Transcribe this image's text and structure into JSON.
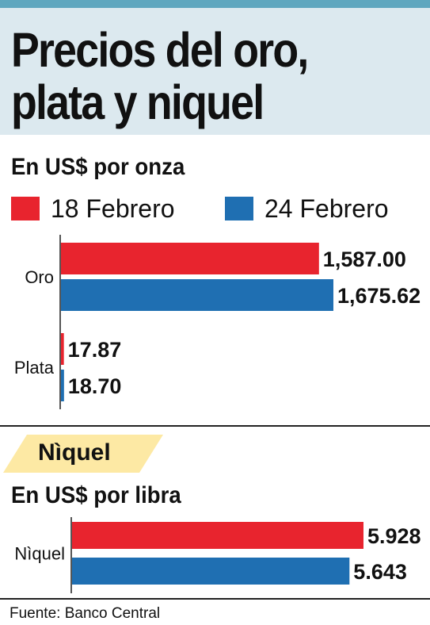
{
  "title_line1": "Precios del oro,",
  "title_line2": "plata y niquel",
  "unit_ounce": "En US$ por onza",
  "unit_pound": "En US$ por libra",
  "nickel_section_label": "Nìquel",
  "source": "Fuente: Banco Central",
  "colors": {
    "series1": "#e8242e",
    "series2": "#1f6fb2",
    "header_bg": "#dce9ef",
    "banner": "#fde9a4"
  },
  "chart_data": [
    {
      "type": "bar",
      "orientation": "horizontal",
      "title": "En US$ por onza",
      "categories": [
        "Oro",
        "Plata"
      ],
      "series": [
        {
          "name": "18 Febrero",
          "color": "#e8242e",
          "values": [
            1587.0,
            17.87
          ],
          "labels": [
            "1,587.00",
            "17.87"
          ]
        },
        {
          "name": "24 Febrero",
          "color": "#1f6fb2",
          "values": [
            1675.62,
            18.7
          ],
          "labels": [
            "1,675.62",
            "18.70"
          ]
        }
      ],
      "xlim": [
        0,
        1675.62
      ],
      "legend": "top",
      "grid": false
    },
    {
      "type": "bar",
      "orientation": "horizontal",
      "title": "En US$ por libra",
      "categories": [
        "Nìquel"
      ],
      "series": [
        {
          "name": "18 Febrero",
          "color": "#e8242e",
          "values": [
            5.928
          ],
          "labels": [
            "5.928"
          ]
        },
        {
          "name": "24 Febrero",
          "color": "#1f6fb2",
          "values": [
            5.643
          ],
          "labels": [
            "5.643"
          ]
        }
      ],
      "xlim": [
        0,
        5.928
      ],
      "grid": false
    }
  ]
}
